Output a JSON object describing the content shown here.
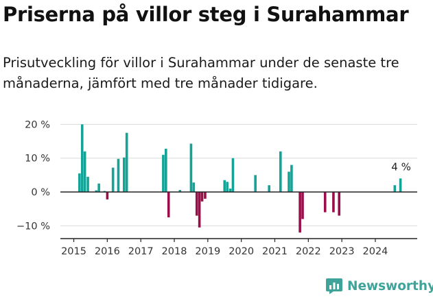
{
  "header": {
    "title": "Priserna på villor steg i Surahammar",
    "subtitle": "Prisutveckling för villor i Surahammar under de senaste tre månaderna, jämfört med tre månader tidigare."
  },
  "brand": {
    "name": "Newsworthy",
    "icon": "newsworthy-logo-icon"
  },
  "colors": {
    "positive": "#14a396",
    "negative": "#9b0e4a",
    "grid": "#d9d9d9",
    "axis": "#222222",
    "text": "#333333",
    "brand": "#3fa39a"
  },
  "chart_data": {
    "type": "bar",
    "title": "Priserna på villor steg i Surahammar",
    "xlabel": "",
    "ylabel": "",
    "ylim": [
      -15,
      21
    ],
    "xlim": [
      2014.6,
      2025.25
    ],
    "y_ticks": [
      {
        "value": 20,
        "label": "20 %"
      },
      {
        "value": 10,
        "label": "10 %"
      },
      {
        "value": 0,
        "label": "0 %"
      },
      {
        "value": -10,
        "label": "−10 %"
      }
    ],
    "x_ticks": [
      {
        "value": 2015,
        "label": "2015"
      },
      {
        "value": 2016,
        "label": "2016"
      },
      {
        "value": 2017,
        "label": "2017"
      },
      {
        "value": 2018,
        "label": "2018"
      },
      {
        "value": 2019,
        "label": "2019"
      },
      {
        "value": 2020,
        "label": "2020"
      },
      {
        "value": 2021,
        "label": "2021"
      },
      {
        "value": 2022,
        "label": "2022"
      },
      {
        "value": 2023,
        "label": "2023"
      },
      {
        "value": 2024,
        "label": "2024"
      }
    ],
    "x": [
      2015.17,
      2015.25,
      2015.33,
      2015.42,
      2015.67,
      2015.75,
      2015.92,
      2016.0,
      2016.17,
      2016.33,
      2016.5,
      2016.58,
      2017.67,
      2017.75,
      2017.83,
      2018.17,
      2018.5,
      2018.58,
      2018.67,
      2018.75,
      2018.83,
      2018.92,
      2019.5,
      2019.58,
      2019.67,
      2019.75,
      2020.42,
      2020.83,
      2021.17,
      2021.42,
      2021.5,
      2021.75,
      2021.83,
      2022.5,
      2022.75,
      2022.92,
      2024.58,
      2024.75
    ],
    "values": [
      5.5,
      20,
      12,
      4.5,
      0.5,
      2.5,
      0.3,
      -2.2,
      7.2,
      9.8,
      10.2,
      17.5,
      11,
      12.8,
      -7.5,
      0.6,
      14.3,
      2.8,
      -7,
      -10.5,
      -2.8,
      -2,
      3.5,
      3,
      1,
      10,
      5,
      2,
      12,
      6,
      8,
      -12,
      -8,
      -6,
      -6,
      -7,
      2,
      4
    ],
    "annotations": [
      {
        "x": 2024.75,
        "y": 4,
        "text": "4 %"
      }
    ]
  }
}
